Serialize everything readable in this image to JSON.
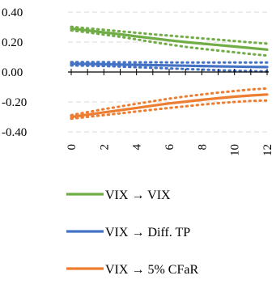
{
  "chart_data": {
    "type": "line",
    "title": "",
    "xlabel": "",
    "ylabel": "",
    "x": [
      0,
      1,
      2,
      3,
      4,
      5,
      6,
      7,
      8,
      9,
      10,
      11,
      12
    ],
    "x_tick_labels": [
      "0",
      "2",
      "4",
      "6",
      "8",
      "10",
      "12"
    ],
    "x_tick_values": [
      0,
      2,
      4,
      6,
      8,
      10,
      12
    ],
    "y_tick_labels": [
      "0.40",
      "0.20",
      "0.00",
      "-0.20",
      "-0.40"
    ],
    "y_tick_values": [
      0.4,
      0.2,
      0.0,
      -0.2,
      -0.4
    ],
    "ylim": [
      -0.4,
      0.4
    ],
    "grid": "horizontal dashed",
    "legend_position": "bottom",
    "series": [
      {
        "name": "VIX → VIX",
        "color": "#70AD47",
        "values": [
          0.29,
          0.278,
          0.265,
          0.252,
          0.238,
          0.225,
          0.212,
          0.2,
          0.19,
          0.18,
          0.17,
          0.16,
          0.15
        ],
        "upper": [
          0.302,
          0.292,
          0.282,
          0.272,
          0.262,
          0.252,
          0.243,
          0.234,
          0.225,
          0.216,
          0.207,
          0.198,
          0.19
        ],
        "lower": [
          0.278,
          0.265,
          0.25,
          0.235,
          0.218,
          0.2,
          0.184,
          0.168,
          0.155,
          0.143,
          0.132,
          0.12,
          0.11
        ]
      },
      {
        "name": "VIX → Diff. TP",
        "color": "#4472C4",
        "values": [
          0.055,
          0.054,
          0.052,
          0.05,
          0.048,
          0.046,
          0.044,
          0.042,
          0.04,
          0.038,
          0.036,
          0.034,
          0.033
        ],
        "upper": [
          0.066,
          0.066,
          0.066,
          0.065,
          0.065,
          0.065,
          0.064,
          0.064,
          0.064,
          0.063,
          0.063,
          0.063,
          0.063
        ],
        "lower": [
          0.044,
          0.042,
          0.04,
          0.036,
          0.032,
          0.028,
          0.024,
          0.02,
          0.016,
          0.012,
          0.009,
          0.006,
          0.004
        ]
      },
      {
        "name": "VIX → 5% CFaR",
        "color": "#ED7D31",
        "values": [
          -0.3,
          -0.285,
          -0.27,
          -0.255,
          -0.24,
          -0.225,
          -0.21,
          -0.198,
          -0.186,
          -0.175,
          -0.165,
          -0.157,
          -0.15
        ],
        "upper": [
          -0.288,
          -0.268,
          -0.248,
          -0.23,
          -0.212,
          -0.195,
          -0.178,
          -0.163,
          -0.15,
          -0.138,
          -0.127,
          -0.117,
          -0.11
        ],
        "lower": [
          -0.312,
          -0.3,
          -0.288,
          -0.276,
          -0.264,
          -0.252,
          -0.24,
          -0.229,
          -0.218,
          -0.208,
          -0.2,
          -0.193,
          -0.19
        ]
      }
    ]
  }
}
